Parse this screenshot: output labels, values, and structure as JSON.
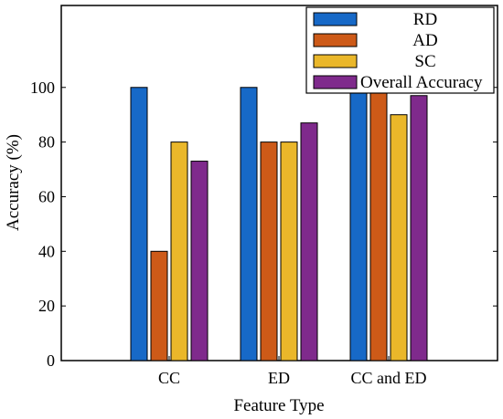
{
  "chart_data": {
    "type": "bar",
    "xlabel": "Feature Type",
    "ylabel": "Accuracy (%)",
    "categories": [
      "CC",
      "ED",
      "CC and ED"
    ],
    "ylim": [
      0,
      130
    ],
    "yticks": [
      0,
      20,
      40,
      60,
      80,
      100
    ],
    "ytick_labels": [
      "0",
      "20",
      "40",
      "60",
      "80",
      "100"
    ],
    "legend_position": "top-right",
    "series": [
      {
        "name": "RD",
        "color": "#1769c7",
        "values": [
          100,
          100,
          100
        ]
      },
      {
        "name": "AD",
        "color": "#cd5a18",
        "values": [
          40,
          80,
          100
        ]
      },
      {
        "name": "SC",
        "color": "#eab72a",
        "values": [
          80,
          80,
          90
        ]
      },
      {
        "name": "Overall Accuracy",
        "color": "#7f2a8c",
        "values": [
          73,
          87,
          97
        ]
      }
    ]
  }
}
